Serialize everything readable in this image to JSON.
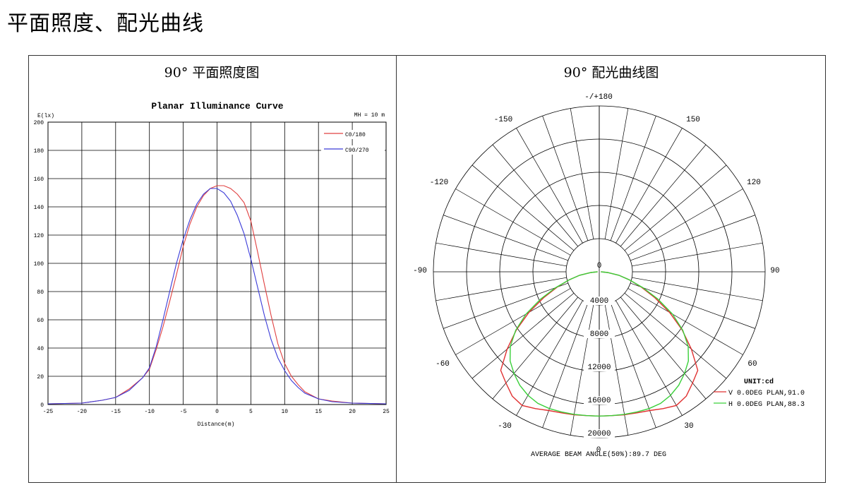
{
  "page": {
    "title": "平面照度、配光曲线"
  },
  "panels": {
    "left_title": "90° 平面照度图",
    "right_title": "90° 配光曲线图"
  },
  "chart_data": [
    {
      "type": "line",
      "title": "Planar Illuminance Curve",
      "xlabel": "Distance(m)",
      "ylabel": "E(lx)",
      "annotation": "MH = 10 m",
      "xlim": [
        -25,
        25
      ],
      "ylim": [
        0,
        200
      ],
      "x_ticks": [
        -25,
        -20,
        -15,
        -10,
        -5,
        0,
        5,
        10,
        15,
        20,
        25
      ],
      "y_ticks": [
        0,
        20,
        40,
        60,
        80,
        100,
        120,
        140,
        160,
        180,
        200
      ],
      "grid": true,
      "legend": "top-right",
      "series": [
        {
          "name": "C0/180",
          "color": "#e04040",
          "x": [
            -25,
            -20,
            -17,
            -15,
            -13,
            -11,
            -10,
            -9,
            -8,
            -7,
            -6,
            -5,
            -4,
            -3,
            -2,
            -1,
            0,
            1,
            2,
            3,
            4,
            5,
            6,
            7,
            8,
            9,
            10,
            11,
            12,
            13,
            15,
            17,
            20,
            25
          ],
          "y": [
            0.5,
            1,
            3,
            5,
            11,
            19,
            25,
            39,
            55,
            73,
            92,
            112,
            128,
            140,
            148,
            153,
            155,
            155,
            153,
            149,
            143,
            130,
            108,
            85,
            63,
            43,
            29,
            20,
            14,
            9,
            4,
            2.5,
            1,
            0.5
          ]
        },
        {
          "name": "C90/270",
          "color": "#3a3ad8",
          "x": [
            -25,
            -20,
            -17,
            -15,
            -13,
            -11,
            -10,
            -9,
            -8,
            -7,
            -6,
            -5,
            -4,
            -3,
            -2,
            -1,
            0,
            1,
            2,
            3,
            4,
            5,
            6,
            7,
            8,
            9,
            10,
            11,
            12,
            13,
            15,
            17,
            20,
            25
          ],
          "y": [
            0.5,
            1,
            3,
            5,
            10,
            19,
            26,
            41,
            60,
            80,
            100,
            117,
            131,
            142,
            149,
            153,
            153,
            150,
            144,
            134,
            121,
            103,
            83,
            63,
            46,
            33,
            24,
            17,
            12,
            8,
            4,
            2,
            1,
            0.5
          ]
        }
      ]
    },
    {
      "type": "polar",
      "unit_label": "UNIT:cd",
      "angle_labels": [
        "-/+180",
        "150",
        "120",
        "90",
        "60",
        "30",
        "0",
        "-30",
        "-60",
        "-90",
        "-120",
        "-150"
      ],
      "radial_labels": [
        "0",
        "4000",
        "8000",
        "12000",
        "16000",
        "20000"
      ],
      "r_max": 20000,
      "footer": "AVERAGE BEAM ANGLE(50%):89.7 DEG",
      "legend": "right",
      "series": [
        {
          "name": "V 0.0DEG PLAN,91.0",
          "color": "#e03030",
          "angles": [
            0,
            5,
            10,
            15,
            20,
            25,
            30,
            35,
            40,
            45,
            50,
            55,
            60,
            65,
            70,
            75,
            80,
            85,
            90
          ],
          "values": [
            17400,
            17400,
            17500,
            17600,
            17800,
            18200,
            18600,
            18300,
            17500,
            16800,
            14500,
            12200,
            9800,
            7400,
            5400,
            3800,
            2400,
            1000,
            200
          ]
        },
        {
          "name": "H 0.0DEG PLAN,88.3",
          "color": "#3ad03a",
          "angles": [
            0,
            5,
            10,
            15,
            20,
            25,
            30,
            35,
            40,
            45,
            50,
            55,
            60,
            65,
            70,
            75,
            80,
            85,
            90
          ],
          "values": [
            17400,
            17400,
            17450,
            17500,
            17550,
            17500,
            17200,
            16700,
            16000,
            15200,
            14000,
            12300,
            10200,
            7800,
            5600,
            3800,
            2400,
            1000,
            200
          ]
        }
      ]
    }
  ]
}
